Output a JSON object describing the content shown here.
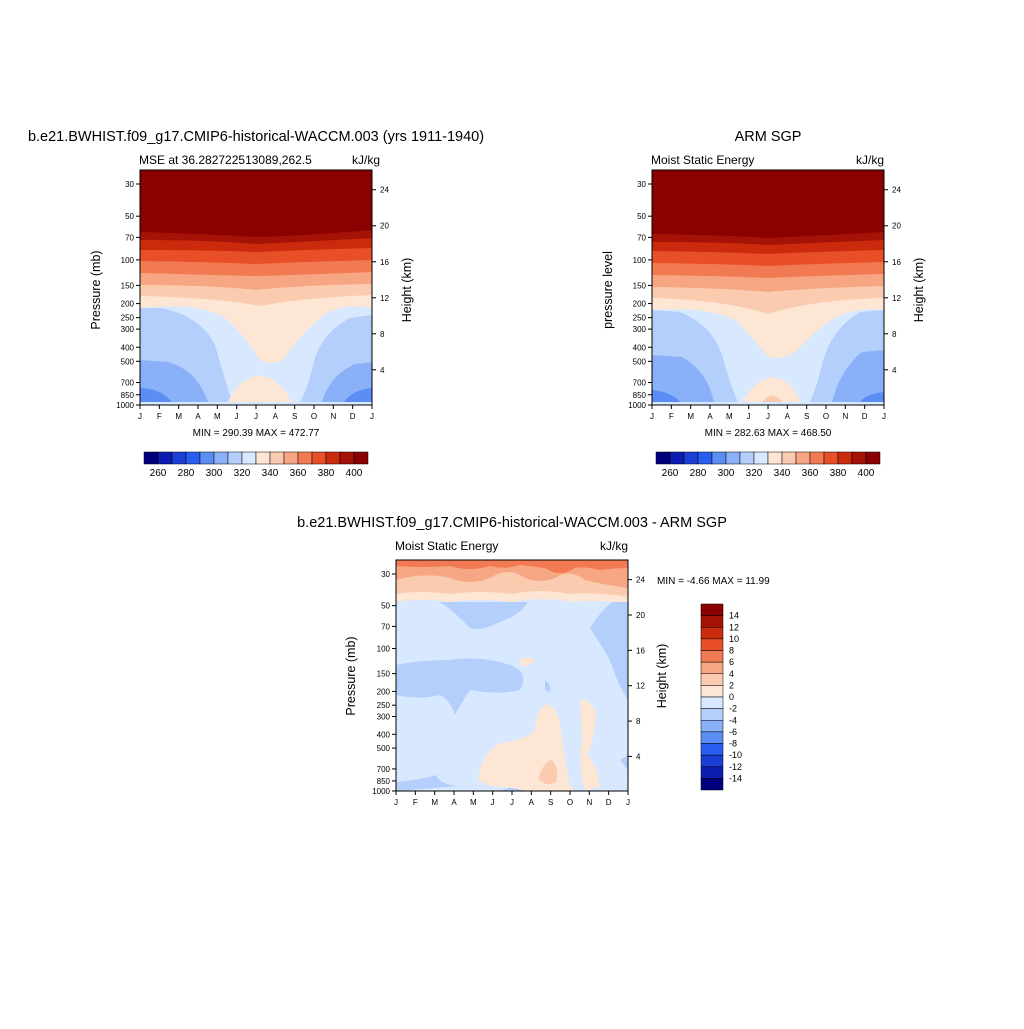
{
  "panels": [
    {
      "title": "b.e21.BWHIST.f09_g17.CMIP6-historical-WACCM.003 (yrs 1911-1940)",
      "left_label": "MSE at 36.282722513089,262.5",
      "right_label": "kJ/kg",
      "ylabel": "Pressure (mb)",
      "ylabel_right": "Height (km)",
      "minmax": "MIN = 290.39 MAX = 472.77"
    },
    {
      "title": "ARM SGP",
      "left_label": "Moist Static Energy",
      "right_label": "kJ/kg",
      "ylabel": "pressure level",
      "ylabel_right": "Height (km)",
      "minmax": "MIN = 282.63 MAX = 468.50"
    },
    {
      "title": "b.e21.BWHIST.f09_g17.CMIP6-historical-WACCM.003 - ARM SGP",
      "left_label": "Moist Static Energy",
      "right_label": "kJ/kg",
      "ylabel": "Pressure (mb)",
      "ylabel_right": "Height (km)",
      "minmax": "MIN =  -4.66 MAX =  11.99"
    }
  ],
  "chart_data": [
    {
      "type": "heatmap",
      "title": "b.e21.BWHIST.f09_g17.CMIP6-historical-WACCM.003 (yrs 1911-1940)",
      "subtitle": "MSE at 36.282722513089,262.5",
      "units": "kJ/kg",
      "ylabel": "Pressure (mb)",
      "ylabel_right": "Height (km)",
      "x_ticks": [
        "J",
        "F",
        "M",
        "A",
        "M",
        "J",
        "J",
        "A",
        "S",
        "O",
        "N",
        "D",
        "J"
      ],
      "y_ticks": [
        "30",
        "50",
        "70",
        "100",
        "150",
        "200",
        "250",
        "300",
        "400",
        "500",
        "700",
        "850",
        "1000"
      ],
      "y_ticks_right": [
        "24",
        "20",
        "16",
        "12",
        "8",
        "4"
      ],
      "contour_levels": [
        260,
        270,
        280,
        290,
        300,
        310,
        320,
        330,
        340,
        350,
        360,
        370,
        380,
        390,
        400
      ],
      "colorbar_labels": [
        "260",
        "280",
        "300",
        "320",
        "340",
        "360",
        "380",
        "400"
      ],
      "min": 290.39,
      "max": 472.77
    },
    {
      "type": "heatmap",
      "title": "ARM SGP",
      "subtitle": "Moist Static Energy",
      "units": "kJ/kg",
      "ylabel": "pressure level",
      "ylabel_right": "Height (km)",
      "x_ticks": [
        "J",
        "F",
        "M",
        "A",
        "M",
        "J",
        "J",
        "A",
        "S",
        "O",
        "N",
        "D",
        "J"
      ],
      "y_ticks": [
        "30",
        "50",
        "70",
        "100",
        "150",
        "200",
        "250",
        "300",
        "400",
        "500",
        "700",
        "850",
        "1000"
      ],
      "y_ticks_right": [
        "24",
        "20",
        "16",
        "12",
        "8",
        "4"
      ],
      "contour_levels": [
        260,
        270,
        280,
        290,
        300,
        310,
        320,
        330,
        340,
        350,
        360,
        370,
        380,
        390,
        400
      ],
      "colorbar_labels": [
        "260",
        "280",
        "300",
        "320",
        "340",
        "360",
        "380",
        "400"
      ],
      "min": 282.63,
      "max": 468.5
    },
    {
      "type": "heatmap",
      "title": "b.e21.BWHIST.f09_g17.CMIP6-historical-WACCM.003 - ARM SGP",
      "subtitle": "Moist Static Energy",
      "units": "kJ/kg",
      "ylabel": "Pressure (mb)",
      "ylabel_right": "Height (km)",
      "x_ticks": [
        "J",
        "F",
        "M",
        "A",
        "M",
        "J",
        "J",
        "A",
        "S",
        "O",
        "N",
        "D",
        "J"
      ],
      "y_ticks": [
        "30",
        "50",
        "70",
        "100",
        "150",
        "200",
        "250",
        "300",
        "400",
        "500",
        "700",
        "850",
        "1000"
      ],
      "y_ticks_right": [
        "24",
        "20",
        "16",
        "12",
        "8",
        "4"
      ],
      "contour_levels": [
        -14,
        -12,
        -10,
        -8,
        -6,
        -4,
        -2,
        0,
        2,
        4,
        6,
        8,
        10,
        12,
        14
      ],
      "colorbar_labels": [
        "14",
        "12",
        "10",
        "8",
        "6",
        "4",
        "2",
        "0",
        "-2",
        "-4",
        "-6",
        "-8",
        "-10",
        "-12",
        "-14"
      ],
      "min": -4.66,
      "max": 11.99
    }
  ],
  "colors": {
    "palette": [
      "#00007f",
      "#0a1db0",
      "#1a3ed6",
      "#2a5ef0",
      "#5a8ef5",
      "#8ab0f8",
      "#b4cffb",
      "#d8e8fe",
      "#fde6d4",
      "#fbcbb0",
      "#f7a684",
      "#f27a52",
      "#e84e28",
      "#cc2a0d",
      "#a51206",
      "#8b0000"
    ]
  }
}
